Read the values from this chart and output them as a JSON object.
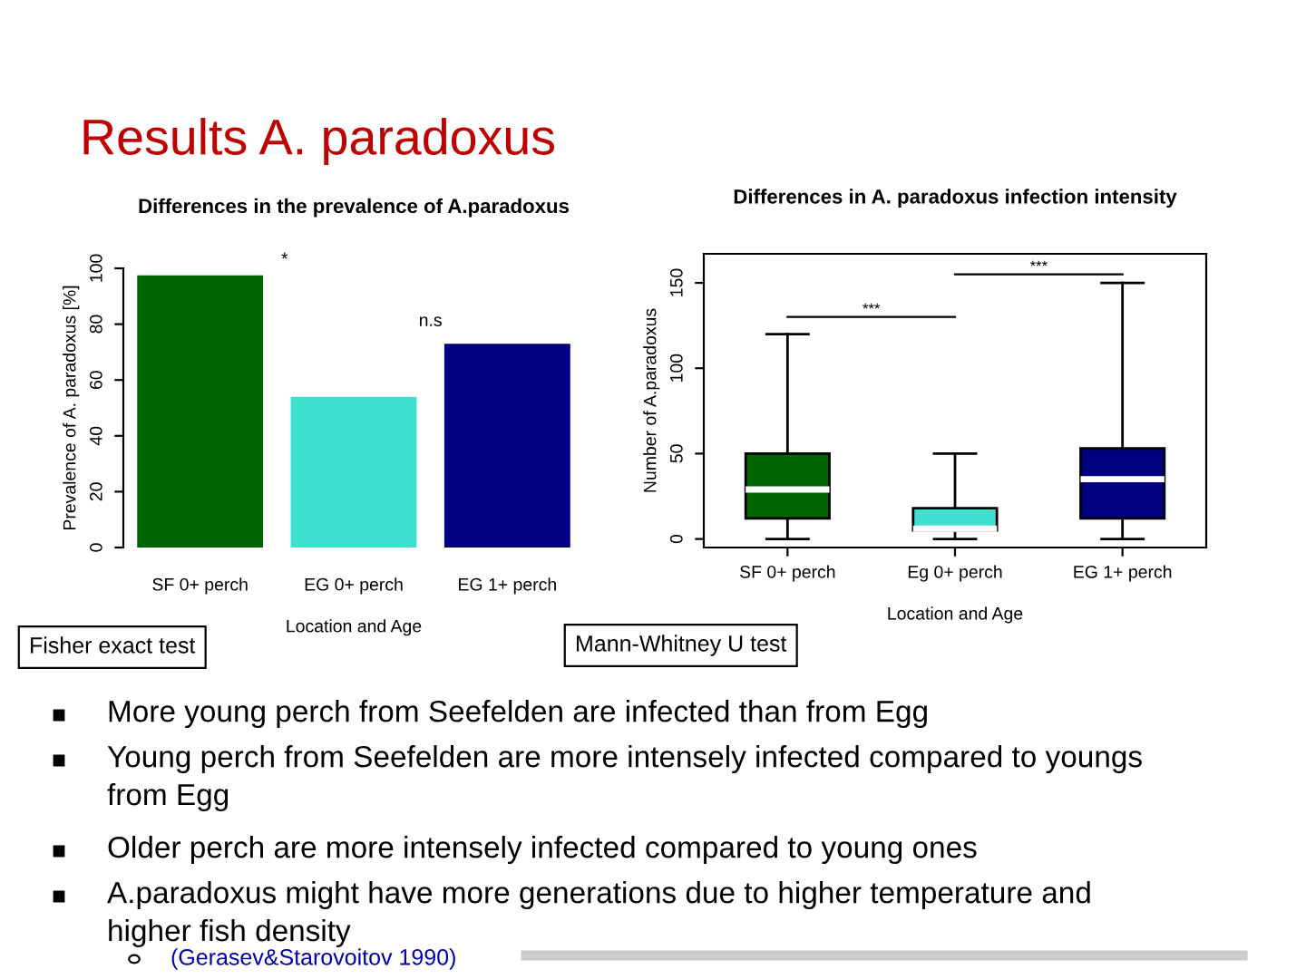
{
  "chart_data": [
    {
      "type": "bar",
      "title": "Differences in the prevalence of A.paradoxus",
      "xlabel": "Location and Age",
      "ylabel": "Prevalence of A. paradoxus [%]",
      "categories": [
        "SF 0+ perch",
        "EG 0+ perch",
        "EG 1+ perch"
      ],
      "values": [
        97.5,
        54,
        73
      ],
      "colors": [
        "#006400",
        "#40e0d0",
        "#000080"
      ],
      "ylim": [
        0,
        100
      ],
      "yticks": [
        0,
        20,
        40,
        60,
        80,
        100
      ],
      "grid": false,
      "annotations": [
        "*",
        "n.s",
        "Fisher exact test"
      ]
    },
    {
      "type": "box",
      "title": "Differences in A. paradoxus infection intensity",
      "xlabel": "Location and Age",
      "ylabel": "Number of A.paradoxus",
      "categories": [
        "SF 0+ perch",
        "Eg 0+ perch",
        "EG 1+ perch"
      ],
      "colors": [
        "#006400",
        "#40e0d0",
        "#000080"
      ],
      "boxes": [
        {
          "low": 0,
          "q1": 12,
          "median": 29,
          "q3": 50,
          "high": 120
        },
        {
          "low": 0,
          "q1": 5,
          "median": 6,
          "q3": 18,
          "high": 50
        },
        {
          "low": 0,
          "q1": 12,
          "median": 35,
          "q3": 53,
          "high": 150
        }
      ],
      "ylim": [
        -5,
        167
      ],
      "yticks": [
        0,
        50,
        100,
        150
      ],
      "grid": false,
      "annotations": [
        "***",
        "***",
        "Mann-Whitney U test"
      ]
    },
    {
      "type": "other",
      "title": "Results A. paradoxus",
      "annotations": [
        "More young perch from Seefelden are infected than from Egg",
        "Young perch from Seefelden are more intensely infected compared to youngs\nfrom Egg",
        "Older perch are more intensely infected compared to young ones",
        "A.paradoxus might have more generations due to higher temperature and\nhigher fish density",
        "(Gerasev&Starovoitov 1990)"
      ]
    }
  ]
}
